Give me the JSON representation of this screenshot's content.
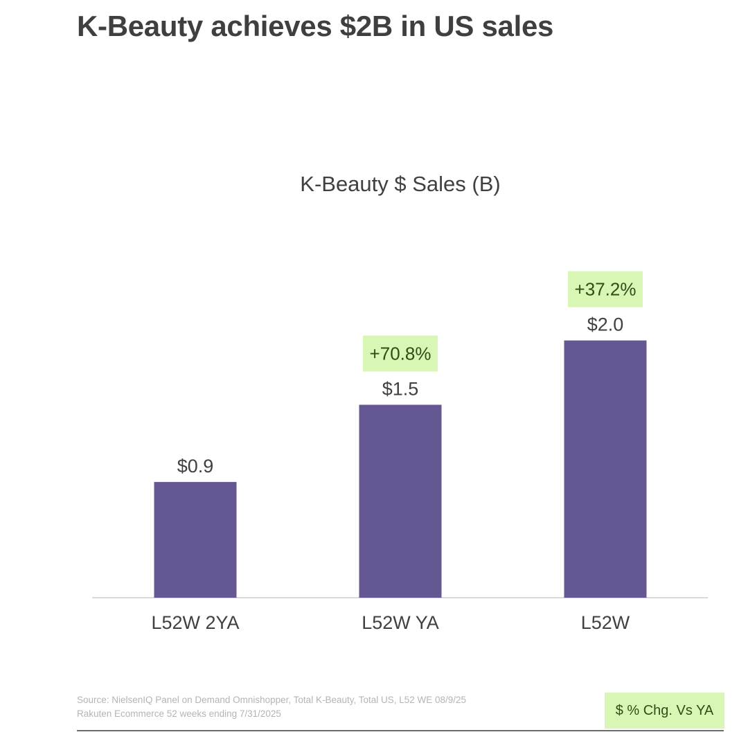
{
  "page": {
    "title": "K-Beauty achieves $2B in US sales"
  },
  "chart_data": {
    "type": "bar",
    "title": "K-Beauty $ Sales (B)",
    "categories": [
      "L52W 2YA",
      "L52W YA",
      "L52W"
    ],
    "series": [
      {
        "name": "K-Beauty $ Sales (B)",
        "values": [
          0.9,
          1.5,
          2.0
        ],
        "labels": [
          "$0.9",
          "$1.5",
          "$2.0"
        ]
      }
    ],
    "pct_change_vs_ya": [
      null,
      "+70.8%",
      "+37.2%"
    ],
    "xlabel": "",
    "ylabel": "",
    "ylim": [
      0,
      2.1
    ],
    "grid": false,
    "legend": "bottom-right"
  },
  "colors": {
    "bar": "#655791",
    "title": "#3f3f3f",
    "label": "#404040",
    "change_highlight": "#d8f7b4",
    "change_text": "#2f4d17",
    "axis": "#d9d9d9"
  },
  "footer": {
    "source_line1": "Source: NielsenIQ Panel on Demand Omnishopper, Total K-Beauty, Total US, L52 WE 08/9/25",
    "source_line2": "Rakuten Ecommerce 52 weeks ending 7/31/2025",
    "legend_label": "$ % Chg. Vs YA"
  }
}
